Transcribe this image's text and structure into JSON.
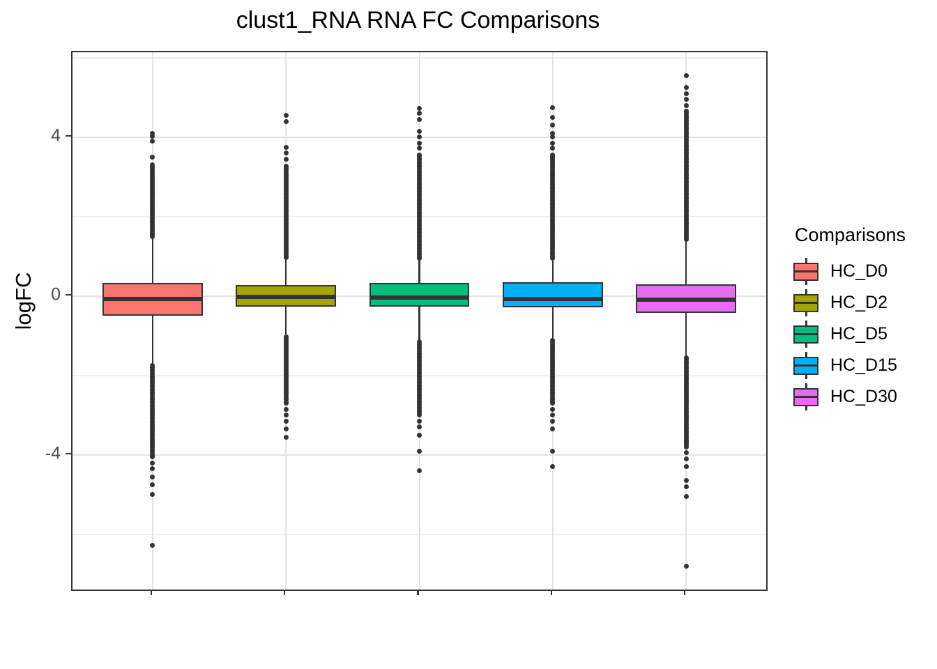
{
  "chart_data": {
    "type": "boxplot",
    "title": "clust1_RNA RNA FC Comparisons",
    "ylabel": "logFC",
    "xlabel": "",
    "legend_title": "Comparisons",
    "legend_position": "right",
    "grid": true,
    "ylim": [
      -7.39,
      6.14
    ],
    "y_ticks": [
      {
        "label": "4",
        "value": 4
      },
      {
        "label": "0",
        "value": 0
      },
      {
        "label": "-4",
        "value": -4
      }
    ],
    "y_minor_gridlines": [
      6,
      2,
      -2,
      -6
    ],
    "x_tick_labels_visible": false,
    "categories": [
      "HC_D0",
      "HC_D2",
      "HC_D5",
      "HC_D15",
      "HC_D30"
    ],
    "series": [
      {
        "name": "HC_D0",
        "color": "#F8766D",
        "q1": -0.49,
        "median": -0.08,
        "q3": 0.33,
        "whisker_low": -1.7,
        "whisker_high": 1.45,
        "outliers_high_dense": [
          1.5,
          3.3
        ],
        "outliers_high": [
          3.5,
          3.9,
          4.02,
          4.1
        ],
        "outliers_low_dense": [
          -4.05,
          -1.75
        ],
        "outliers_low": [
          -4.2,
          -4.35,
          -4.55,
          -4.75,
          -5.0,
          -6.28
        ]
      },
      {
        "name": "HC_D2",
        "color": "#A3A500",
        "q1": -0.27,
        "median": -0.02,
        "q3": 0.27,
        "whisker_low": -0.97,
        "whisker_high": 0.93,
        "outliers_high_dense": [
          0.97,
          3.3
        ],
        "outliers_high": [
          3.45,
          3.6,
          3.75,
          4.4,
          4.55
        ],
        "outliers_low_dense": [
          -2.7,
          -1.0
        ],
        "outliers_low": [
          -2.85,
          -3.0,
          -3.15,
          -3.35,
          -3.55
        ]
      },
      {
        "name": "HC_D5",
        "color": "#00BF7D",
        "q1": -0.26,
        "median": -0.04,
        "q3": 0.33,
        "whisker_low": -1.12,
        "whisker_high": 0.9,
        "outliers_high_dense": [
          0.95,
          3.6
        ],
        "outliers_high": [
          3.72,
          3.85,
          4.0,
          4.15,
          4.45,
          4.6,
          4.72
        ],
        "outliers_low_dense": [
          -3.0,
          -1.15
        ],
        "outliers_low": [
          -3.15,
          -3.3,
          -3.5,
          -3.9,
          -4.4
        ]
      },
      {
        "name": "HC_D15",
        "color": "#00B0F6",
        "q1": -0.29,
        "median": -0.08,
        "q3": 0.35,
        "whisker_low": -1.09,
        "whisker_high": 0.9,
        "outliers_high_dense": [
          0.95,
          3.6
        ],
        "outliers_high": [
          3.72,
          3.85,
          4.0,
          4.1,
          4.3,
          4.5,
          4.75
        ],
        "outliers_low_dense": [
          -2.7,
          -1.1
        ],
        "outliers_low": [
          -2.85,
          -3.0,
          -3.15,
          -3.35,
          -3.9,
          -4.3
        ]
      },
      {
        "name": "HC_D30",
        "color": "#E76BF3",
        "q1": -0.42,
        "median": -0.09,
        "q3": 0.3,
        "whisker_low": -1.5,
        "whisker_high": 1.38,
        "outliers_high_dense": [
          1.42,
          4.7
        ],
        "outliers_high": [
          4.8,
          4.95,
          5.1,
          5.25,
          5.55
        ],
        "outliers_low_dense": [
          -3.8,
          -1.55
        ],
        "outliers_low": [
          -3.95,
          -4.1,
          -4.3,
          -4.65,
          -4.8,
          -5.05,
          -6.8
        ]
      }
    ],
    "colors": {
      "ink": "#333333",
      "grid_major": "#e3e3e3",
      "grid_minor": "#efefef",
      "tick_label": "#4d4d4d",
      "background": "#ffffff"
    }
  }
}
